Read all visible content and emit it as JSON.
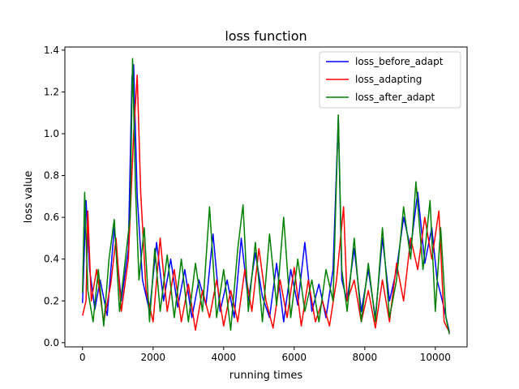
{
  "chart_data": {
    "type": "line",
    "title": "loss function",
    "xlabel": "running times",
    "ylabel": "loss value",
    "xlim": [
      -500,
      10900
    ],
    "ylim": [
      -0.02,
      1.415
    ],
    "xticks": [
      0,
      2000,
      4000,
      6000,
      8000,
      10000
    ],
    "xtick_labels": [
      "0",
      "2000",
      "4000",
      "6000",
      "8000",
      "10000"
    ],
    "yticks": [
      0.0,
      0.2,
      0.4,
      0.6,
      0.8,
      1.0,
      1.2,
      1.4
    ],
    "ytick_labels": [
      "0.0",
      "0.2",
      "0.4",
      "0.6",
      "0.8",
      "1.0",
      "1.2",
      "1.4"
    ],
    "grid": false,
    "legend_position": "top-right",
    "series": [
      {
        "name": "loss_before_adapt",
        "color": "#0000ff",
        "points": [
          [
            0,
            0.19
          ],
          [
            100,
            0.68
          ],
          [
            200,
            0.35
          ],
          [
            350,
            0.16
          ],
          [
            500,
            0.3
          ],
          [
            700,
            0.13
          ],
          [
            900,
            0.55
          ],
          [
            1100,
            0.2
          ],
          [
            1300,
            0.45
          ],
          [
            1400,
            1.27
          ],
          [
            1450,
            1.33
          ],
          [
            1550,
            0.7
          ],
          [
            1700,
            0.3
          ],
          [
            1900,
            0.15
          ],
          [
            2100,
            0.48
          ],
          [
            2300,
            0.2
          ],
          [
            2500,
            0.4
          ],
          [
            2700,
            0.17
          ],
          [
            2900,
            0.35
          ],
          [
            3100,
            0.12
          ],
          [
            3300,
            0.3
          ],
          [
            3500,
            0.18
          ],
          [
            3700,
            0.52
          ],
          [
            3900,
            0.15
          ],
          [
            4100,
            0.3
          ],
          [
            4300,
            0.12
          ],
          [
            4500,
            0.5
          ],
          [
            4700,
            0.2
          ],
          [
            4900,
            0.43
          ],
          [
            5100,
            0.22
          ],
          [
            5300,
            0.12
          ],
          [
            5500,
            0.38
          ],
          [
            5700,
            0.1
          ],
          [
            5900,
            0.35
          ],
          [
            6100,
            0.18
          ],
          [
            6300,
            0.48
          ],
          [
            6500,
            0.15
          ],
          [
            6700,
            0.28
          ],
          [
            6900,
            0.12
          ],
          [
            7100,
            0.35
          ],
          [
            7250,
            1.08
          ],
          [
            7350,
            0.3
          ],
          [
            7500,
            0.2
          ],
          [
            7700,
            0.45
          ],
          [
            7900,
            0.15
          ],
          [
            8100,
            0.35
          ],
          [
            8300,
            0.12
          ],
          [
            8500,
            0.5
          ],
          [
            8700,
            0.2
          ],
          [
            8900,
            0.35
          ],
          [
            9100,
            0.6
          ],
          [
            9300,
            0.45
          ],
          [
            9500,
            0.72
          ],
          [
            9700,
            0.38
          ],
          [
            9900,
            0.55
          ],
          [
            10050,
            0.3
          ],
          [
            10200,
            0.2
          ],
          [
            10400,
            0.05
          ]
        ]
      },
      {
        "name": "loss_adapting",
        "color": "#ff0000",
        "points": [
          [
            0,
            0.13
          ],
          [
            100,
            0.2
          ],
          [
            150,
            0.63
          ],
          [
            250,
            0.2
          ],
          [
            400,
            0.35
          ],
          [
            600,
            0.1
          ],
          [
            800,
            0.28
          ],
          [
            950,
            0.5
          ],
          [
            1100,
            0.15
          ],
          [
            1300,
            0.4
          ],
          [
            1450,
            1.0
          ],
          [
            1550,
            1.28
          ],
          [
            1650,
            0.72
          ],
          [
            1800,
            0.25
          ],
          [
            2000,
            0.1
          ],
          [
            2200,
            0.5
          ],
          [
            2400,
            0.15
          ],
          [
            2600,
            0.35
          ],
          [
            2800,
            0.1
          ],
          [
            3000,
            0.28
          ],
          [
            3200,
            0.06
          ],
          [
            3400,
            0.25
          ],
          [
            3600,
            0.12
          ],
          [
            3800,
            0.3
          ],
          [
            4000,
            0.08
          ],
          [
            4200,
            0.25
          ],
          [
            4400,
            0.1
          ],
          [
            4600,
            0.35
          ],
          [
            4800,
            0.15
          ],
          [
            5000,
            0.45
          ],
          [
            5200,
            0.2
          ],
          [
            5400,
            0.07
          ],
          [
            5600,
            0.3
          ],
          [
            5800,
            0.12
          ],
          [
            6000,
            0.36
          ],
          [
            6200,
            0.08
          ],
          [
            6400,
            0.3
          ],
          [
            6600,
            0.1
          ],
          [
            6800,
            0.2
          ],
          [
            7000,
            0.08
          ],
          [
            7200,
            0.3
          ],
          [
            7400,
            0.65
          ],
          [
            7500,
            0.2
          ],
          [
            7700,
            0.3
          ],
          [
            7900,
            0.1
          ],
          [
            8100,
            0.25
          ],
          [
            8300,
            0.07
          ],
          [
            8500,
            0.3
          ],
          [
            8700,
            0.1
          ],
          [
            8900,
            0.38
          ],
          [
            9100,
            0.2
          ],
          [
            9300,
            0.5
          ],
          [
            9500,
            0.35
          ],
          [
            9700,
            0.6
          ],
          [
            9900,
            0.4
          ],
          [
            10100,
            0.63
          ],
          [
            10250,
            0.1
          ],
          [
            10400,
            0.05
          ]
        ]
      },
      {
        "name": "loss_after_adapt",
        "color": "#008000",
        "points": [
          [
            0,
            0.24
          ],
          [
            60,
            0.72
          ],
          [
            150,
            0.25
          ],
          [
            300,
            0.1
          ],
          [
            450,
            0.35
          ],
          [
            600,
            0.08
          ],
          [
            750,
            0.4
          ],
          [
            900,
            0.59
          ],
          [
            1050,
            0.15
          ],
          [
            1200,
            0.38
          ],
          [
            1350,
            0.6
          ],
          [
            1420,
            1.36
          ],
          [
            1500,
            0.75
          ],
          [
            1600,
            0.3
          ],
          [
            1750,
            0.55
          ],
          [
            1900,
            0.1
          ],
          [
            2050,
            0.45
          ],
          [
            2200,
            0.15
          ],
          [
            2400,
            0.42
          ],
          [
            2600,
            0.12
          ],
          [
            2800,
            0.4
          ],
          [
            3000,
            0.1
          ],
          [
            3200,
            0.38
          ],
          [
            3400,
            0.15
          ],
          [
            3600,
            0.65
          ],
          [
            3800,
            0.12
          ],
          [
            4000,
            0.35
          ],
          [
            4200,
            0.06
          ],
          [
            4400,
            0.45
          ],
          [
            4550,
            0.66
          ],
          [
            4700,
            0.15
          ],
          [
            4900,
            0.48
          ],
          [
            5100,
            0.1
          ],
          [
            5300,
            0.52
          ],
          [
            5500,
            0.18
          ],
          [
            5700,
            0.6
          ],
          [
            5900,
            0.12
          ],
          [
            6100,
            0.4
          ],
          [
            6300,
            0.15
          ],
          [
            6500,
            0.3
          ],
          [
            6700,
            0.1
          ],
          [
            6900,
            0.35
          ],
          [
            7100,
            0.2
          ],
          [
            7250,
            1.09
          ],
          [
            7350,
            0.35
          ],
          [
            7500,
            0.15
          ],
          [
            7700,
            0.5
          ],
          [
            7900,
            0.1
          ],
          [
            8100,
            0.38
          ],
          [
            8300,
            0.1
          ],
          [
            8500,
            0.55
          ],
          [
            8700,
            0.12
          ],
          [
            8900,
            0.3
          ],
          [
            9100,
            0.65
          ],
          [
            9300,
            0.4
          ],
          [
            9450,
            0.77
          ],
          [
            9650,
            0.35
          ],
          [
            9850,
            0.68
          ],
          [
            10000,
            0.15
          ],
          [
            10150,
            0.55
          ],
          [
            10300,
            0.12
          ],
          [
            10400,
            0.04
          ]
        ]
      }
    ]
  }
}
